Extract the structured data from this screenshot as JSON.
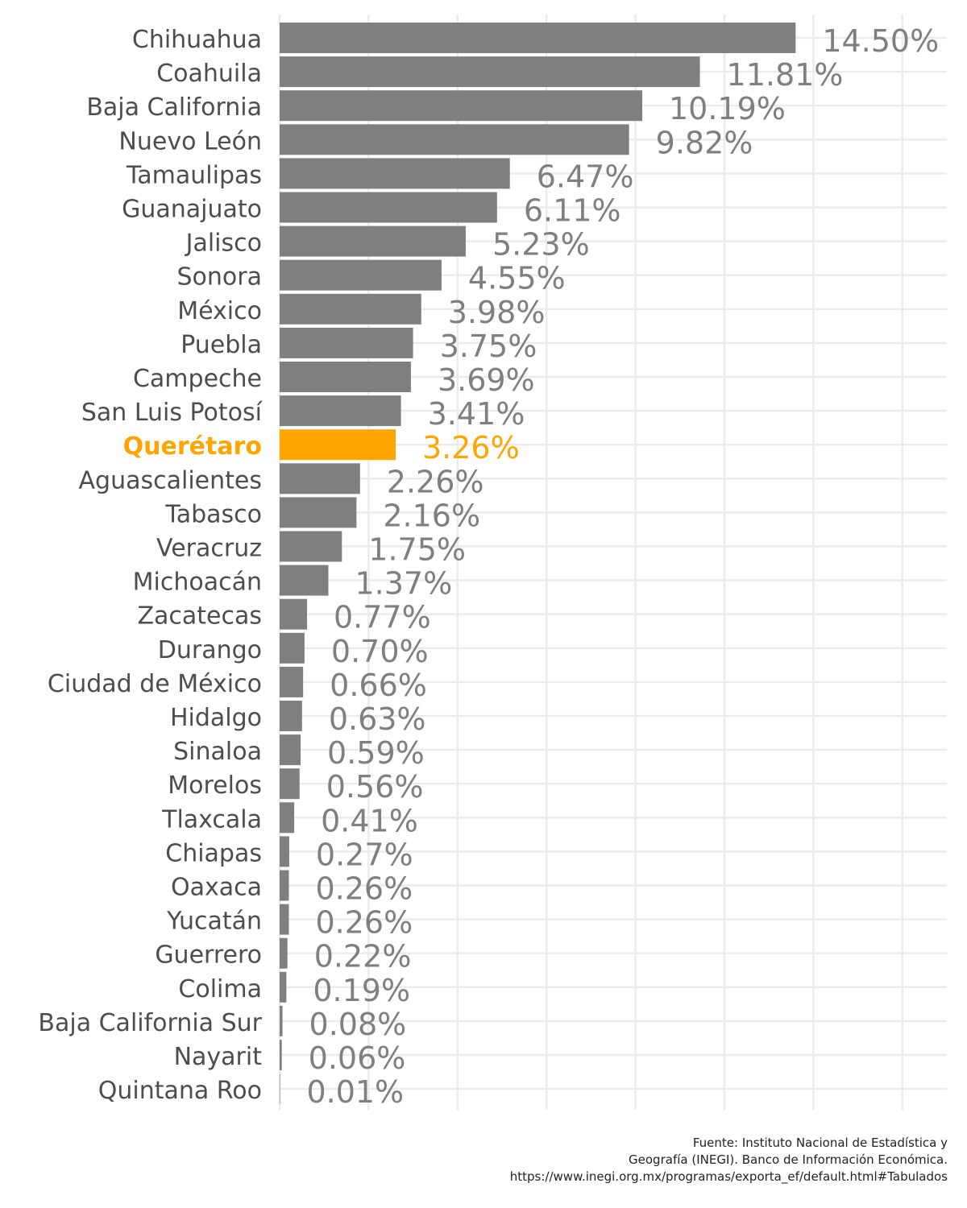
{
  "chart_data": {
    "type": "bar",
    "orientation": "horizontal",
    "categories": [
      "Chihuahua",
      "Coahuila",
      "Baja California",
      "Nuevo León",
      "Tamaulipas",
      "Guanajuato",
      "Jalisco",
      "Sonora",
      "México",
      "Puebla",
      "Campeche",
      "San Luis Potosí",
      "Querétaro",
      "Aguascalientes",
      "Tabasco",
      "Veracruz",
      "Michoacán",
      "Zacatecas",
      "Durango",
      "Ciudad de México",
      "Hidalgo",
      "Sinaloa",
      "Morelos",
      "Tlaxcala",
      "Chiapas",
      "Oaxaca",
      "Yucatán",
      "Guerrero",
      "Colima",
      "Baja California Sur",
      "Nayarit",
      "Quintana Roo"
    ],
    "values": [
      14.5,
      11.81,
      10.19,
      9.82,
      6.47,
      6.11,
      5.23,
      4.55,
      3.98,
      3.75,
      3.69,
      3.41,
      3.26,
      2.26,
      2.16,
      1.75,
      1.37,
      0.77,
      0.7,
      0.66,
      0.63,
      0.59,
      0.56,
      0.41,
      0.27,
      0.26,
      0.26,
      0.22,
      0.19,
      0.08,
      0.06,
      0.01
    ],
    "labels": [
      "14.50%",
      "11.81%",
      "10.19%",
      "9.82%",
      "6.47%",
      "6.11%",
      "5.23%",
      "4.55%",
      "3.98%",
      "3.75%",
      "3.69%",
      "3.41%",
      "3.26%",
      "2.26%",
      "2.16%",
      "1.75%",
      "1.37%",
      "0.77%",
      "0.70%",
      "0.66%",
      "0.63%",
      "0.59%",
      "0.56%",
      "0.41%",
      "0.27%",
      "0.26%",
      "0.26%",
      "0.22%",
      "0.19%",
      "0.08%",
      "0.06%",
      "0.01%"
    ],
    "highlight": "Querétaro",
    "xlim": [
      0,
      18.75
    ],
    "grid": true,
    "xlabel": "",
    "ylabel": "",
    "title": ""
  },
  "colors": {
    "bar": "#7f7f7f",
    "highlight": "#ffa500",
    "label": "#7f7f7f",
    "category": "#4d4d4d",
    "grid": "#ebebeb"
  },
  "caption": {
    "line1": "Fuente: Instituto Nacional de Estadística y",
    "line2": "Geografía (INEGI). Banco de Información Económica.",
    "line3": "https://www.inegi.org.mx/programas/exporta_ef/default.html#Tabulados"
  }
}
